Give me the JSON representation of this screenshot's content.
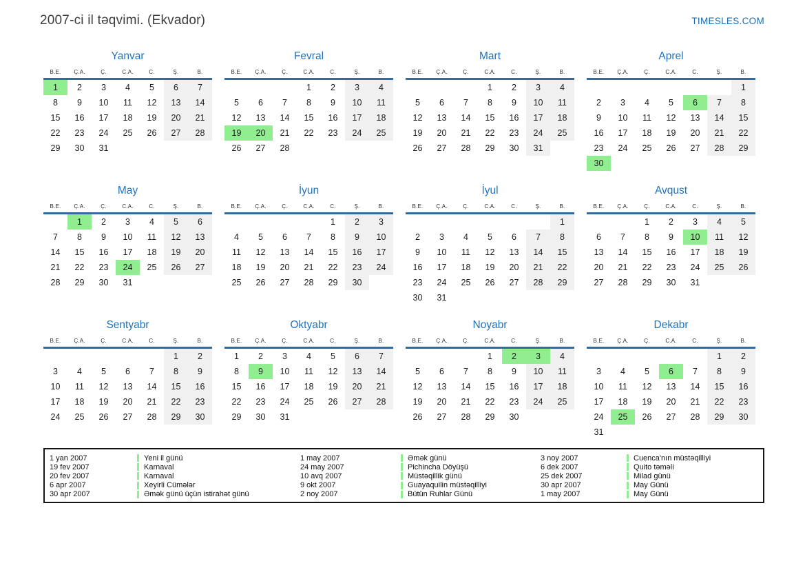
{
  "header": {
    "title": "2007-ci il təqvimi. (Ekvador)",
    "site": "TIMESLES.COM"
  },
  "weekday_headers": [
    "B.E.",
    "Ç.A.",
    "Ç.",
    "C.A.",
    "C.",
    "Ş.",
    "B."
  ],
  "colors": {
    "highlight_green": "#90ee90",
    "weekend_bg": "#f0f0f0",
    "month_title_blue": "#1e73be",
    "header_line_blue": "#35689b",
    "site_link_blue": "#1a6cb0"
  },
  "months": [
    {
      "name": "Yanvar",
      "first_weekday": 0,
      "days": 31,
      "highlighted": [
        1
      ]
    },
    {
      "name": "Fevral",
      "first_weekday": 3,
      "days": 28,
      "highlighted": [
        19,
        20
      ]
    },
    {
      "name": "Mart",
      "first_weekday": 3,
      "days": 31,
      "highlighted": []
    },
    {
      "name": "Aprel",
      "first_weekday": 6,
      "days": 30,
      "highlighted": [
        6,
        30
      ]
    },
    {
      "name": "May",
      "first_weekday": 1,
      "days": 31,
      "highlighted": [
        1,
        24
      ]
    },
    {
      "name": "İyun",
      "first_weekday": 4,
      "days": 30,
      "highlighted": []
    },
    {
      "name": "İyul",
      "first_weekday": 6,
      "days": 31,
      "highlighted": []
    },
    {
      "name": "Avqust",
      "first_weekday": 2,
      "days": 31,
      "highlighted": [
        10
      ]
    },
    {
      "name": "Sentyabr",
      "first_weekday": 5,
      "days": 30,
      "highlighted": []
    },
    {
      "name": "Oktyabr",
      "first_weekday": 0,
      "days": 31,
      "highlighted": [
        9
      ]
    },
    {
      "name": "Noyabr",
      "first_weekday": 3,
      "days": 30,
      "highlighted": [
        2,
        3
      ]
    },
    {
      "name": "Dekabr",
      "first_weekday": 5,
      "days": 31,
      "highlighted": [
        6,
        25
      ]
    }
  ],
  "legend": {
    "groups": [
      {
        "entries": [
          {
            "date": "1 yan 2007",
            "name": "Yeni il günü"
          },
          {
            "date": "19 fev 2007",
            "name": "Karnaval"
          },
          {
            "date": "20 fev 2007",
            "name": "Karnaval"
          },
          {
            "date": "6 apr 2007",
            "name": "Xeyirli Cümələr"
          },
          {
            "date": "30 apr 2007",
            "name": "Əmək günü üçün istirahət günü"
          }
        ]
      },
      {
        "entries": [
          {
            "date": "1 may 2007",
            "name": "Əmək günü"
          },
          {
            "date": "24 may 2007",
            "name": "Pichincha Döyüşü"
          },
          {
            "date": "10 avq 2007",
            "name": "Müstəqillik günü"
          },
          {
            "date": "9 okt 2007",
            "name": "Guayaquilin müstəqilliyi"
          },
          {
            "date": "2 noy 2007",
            "name": "Bütün Ruhlar Günü"
          }
        ]
      },
      {
        "entries": [
          {
            "date": "3 noy 2007",
            "name": "Cuenca'nın müstəqilliyi"
          },
          {
            "date": "6 dek 2007",
            "name": "Quito təməli"
          },
          {
            "date": "25 dek 2007",
            "name": "Milad günü"
          },
          {
            "date": "30 apr 2007",
            "name": "May Günü"
          },
          {
            "date": "1 may 2007",
            "name": "May Günü"
          }
        ]
      }
    ]
  }
}
